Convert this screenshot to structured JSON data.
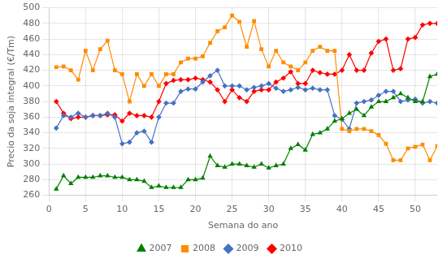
{
  "chart_data": {
    "type": "line",
    "xlabel": "Semana do ano",
    "ylabel": "Precio da soja integral (€/Tm)",
    "x": [
      1,
      2,
      3,
      4,
      5,
      6,
      7,
      8,
      9,
      10,
      11,
      12,
      13,
      14,
      15,
      16,
      17,
      18,
      19,
      20,
      21,
      22,
      23,
      24,
      25,
      26,
      27,
      28,
      29,
      30,
      31,
      32,
      33,
      34,
      35,
      36,
      37,
      38,
      39,
      40,
      41,
      42,
      43,
      44,
      45,
      46,
      47,
      48,
      49,
      50,
      51,
      52,
      53
    ],
    "series": [
      {
        "name": "2007",
        "color": "#008000",
        "marker": "triangle",
        "values": [
          268,
          285,
          275,
          283,
          283,
          283,
          285,
          285,
          283,
          283,
          280,
          280,
          278,
          270,
          272,
          270,
          270,
          270,
          280,
          280,
          282,
          310,
          298,
          296,
          300,
          300,
          298,
          296,
          300,
          295,
          298,
          300,
          320,
          325,
          318,
          338,
          340,
          345,
          355,
          358,
          365,
          370,
          362,
          373,
          380,
          380,
          385,
          390,
          385,
          380,
          380,
          412,
          415
        ]
      },
      {
        "name": "2008",
        "color": "#FF8C00",
        "marker": "square",
        "values": [
          424,
          425,
          420,
          408,
          445,
          420,
          447,
          458,
          420,
          415,
          380,
          415,
          400,
          415,
          400,
          415,
          415,
          430,
          435,
          435,
          438,
          455,
          470,
          475,
          490,
          482,
          450,
          483,
          447,
          425,
          445,
          430,
          425,
          420,
          430,
          445,
          450,
          445,
          445,
          345,
          342,
          345,
          345,
          342,
          337,
          326,
          305,
          305,
          320,
          322,
          325,
          305,
          323
        ]
      },
      {
        "name": "2009",
        "color": "#4472C4",
        "marker": "diamond",
        "values": [
          346,
          362,
          360,
          365,
          360,
          362,
          362,
          365,
          360,
          326,
          328,
          340,
          342,
          328,
          360,
          378,
          378,
          393,
          396,
          396,
          405,
          413,
          420,
          400,
          400,
          400,
          395,
          398,
          400,
          403,
          397,
          393,
          395,
          398,
          395,
          397,
          395,
          395,
          362,
          357,
          345,
          378,
          380,
          382,
          388,
          393,
          393,
          380,
          382,
          383,
          378,
          380,
          378
        ]
      },
      {
        "name": "2010",
        "color": "#FF0000",
        "marker": "diamond",
        "values": [
          380,
          365,
          358,
          360,
          360,
          362,
          362,
          363,
          363,
          355,
          365,
          362,
          362,
          360,
          380,
          403,
          407,
          408,
          408,
          410,
          408,
          405,
          395,
          380,
          395,
          385,
          380,
          393,
          395,
          395,
          405,
          410,
          418,
          403,
          403,
          420,
          417,
          415,
          415,
          420,
          440,
          420,
          420,
          442,
          457,
          460,
          420,
          422,
          460,
          462,
          478,
          480,
          480
        ]
      }
    ],
    "xlim": [
      0,
      53
    ],
    "ylim": [
      260,
      500
    ],
    "xticks": [
      0,
      5,
      10,
      15,
      20,
      25,
      30,
      35,
      40,
      45,
      50
    ],
    "yticks": [
      260,
      280,
      300,
      320,
      340,
      360,
      380,
      400,
      420,
      440,
      460,
      480,
      500
    ],
    "grid": true,
    "legend": "bottom"
  }
}
